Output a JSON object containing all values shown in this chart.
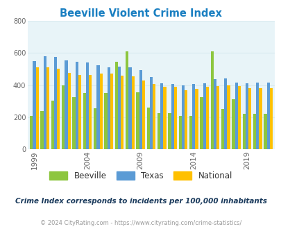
{
  "title": "Beeville Violent Crime Index",
  "subtitle": "Crime Index corresponds to incidents per 100,000 inhabitants",
  "footer": "© 2024 CityRating.com - https://www.cityrating.com/crime-statistics/",
  "years": [
    1999,
    2000,
    2001,
    2002,
    2003,
    2004,
    2005,
    2006,
    2007,
    2008,
    2009,
    2010,
    2011,
    2012,
    2013,
    2014,
    2015,
    2016,
    2017,
    2018,
    2019,
    2020,
    2021
  ],
  "beeville": [
    210,
    240,
    305,
    400,
    325,
    350,
    255,
    350,
    545,
    610,
    355,
    260,
    225,
    225,
    210,
    210,
    325,
    610,
    250,
    310,
    220,
    220,
    220
  ],
  "texas": [
    550,
    580,
    575,
    555,
    545,
    540,
    525,
    510,
    515,
    510,
    495,
    450,
    410,
    405,
    400,
    405,
    410,
    435,
    440,
    415,
    410,
    415,
    415
  ],
  "national": [
    510,
    510,
    500,
    475,
    465,
    465,
    470,
    470,
    460,
    455,
    430,
    405,
    390,
    390,
    368,
    375,
    390,
    395,
    400,
    395,
    380,
    380,
    380
  ],
  "ylim": [
    0,
    800
  ],
  "yticks": [
    0,
    200,
    400,
    600,
    800
  ],
  "xtick_years": [
    1999,
    2004,
    2009,
    2014,
    2019
  ],
  "bar_width": 0.28,
  "beeville_color": "#8dc63f",
  "texas_color": "#5b9bd5",
  "national_color": "#ffc000",
  "bg_color": "#e8f4f8",
  "title_color": "#1a7fc1",
  "subtitle_color": "#1a3a5c",
  "footer_color": "#999999",
  "grid_color": "#d8eaf0"
}
